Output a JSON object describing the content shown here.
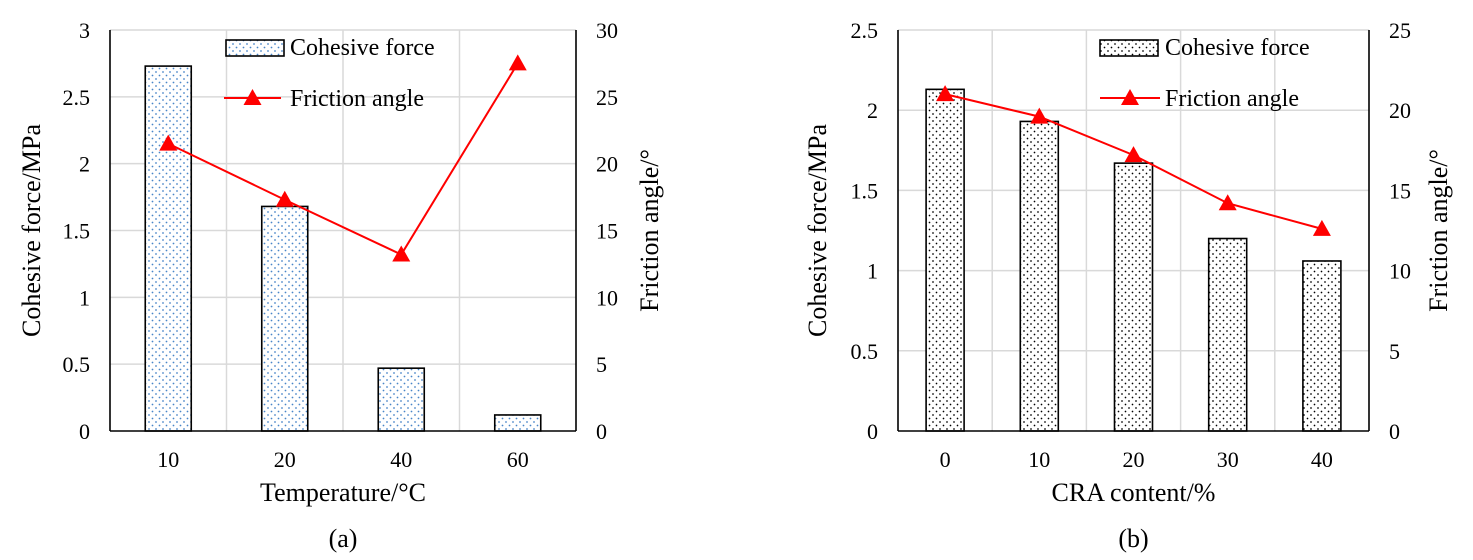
{
  "chart_data": [
    {
      "type": "bar",
      "panel_label": "(a)",
      "categories": [
        "10",
        "20",
        "40",
        "60"
      ],
      "xlabel": "Temperature/°C",
      "ylabel": "Cohesive force/MPa",
      "y2label": "Friction  angle/°",
      "ylim": [
        0,
        3
      ],
      "y2lim": [
        0,
        30
      ],
      "yticks": [
        "0",
        "0.5",
        "1",
        "1.5",
        "2",
        "2.5",
        "3"
      ],
      "y2ticks": [
        "0",
        "5",
        "10",
        "15",
        "20",
        "25",
        "30"
      ],
      "grid": true,
      "legend_position": "top-right",
      "series": [
        {
          "name": "Cohesive force",
          "kind": "bar",
          "axis": "left",
          "values": [
            2.73,
            1.68,
            0.47,
            0.12
          ],
          "pattern": "blue-dots"
        },
        {
          "name": "Friction angle",
          "kind": "line",
          "axis": "right",
          "values": [
            21.5,
            17.3,
            13.2,
            27.5
          ],
          "color": "#ff0000"
        }
      ]
    },
    {
      "type": "bar",
      "panel_label": "(b)",
      "categories": [
        "0",
        "10",
        "20",
        "30",
        "40"
      ],
      "xlabel": "CRA  content/%",
      "ylabel": "Cohesive force/MPa",
      "y2label": "Friction  angle/°",
      "ylim": [
        0,
        2.5
      ],
      "y2lim": [
        0,
        25
      ],
      "yticks": [
        "0",
        "0.5",
        "1",
        "1.5",
        "2",
        "2.5"
      ],
      "y2ticks": [
        "0",
        "5",
        "10",
        "15",
        "20",
        "25"
      ],
      "grid": true,
      "legend_position": "top-right",
      "series": [
        {
          "name": "Cohesive force",
          "kind": "bar",
          "axis": "left",
          "values": [
            2.13,
            1.93,
            1.67,
            1.2,
            1.06
          ],
          "pattern": "black-dots"
        },
        {
          "name": "Friction angle",
          "kind": "line",
          "axis": "right",
          "values": [
            21.0,
            19.6,
            17.2,
            14.2,
            12.6
          ],
          "color": "#ff0000"
        }
      ]
    }
  ]
}
